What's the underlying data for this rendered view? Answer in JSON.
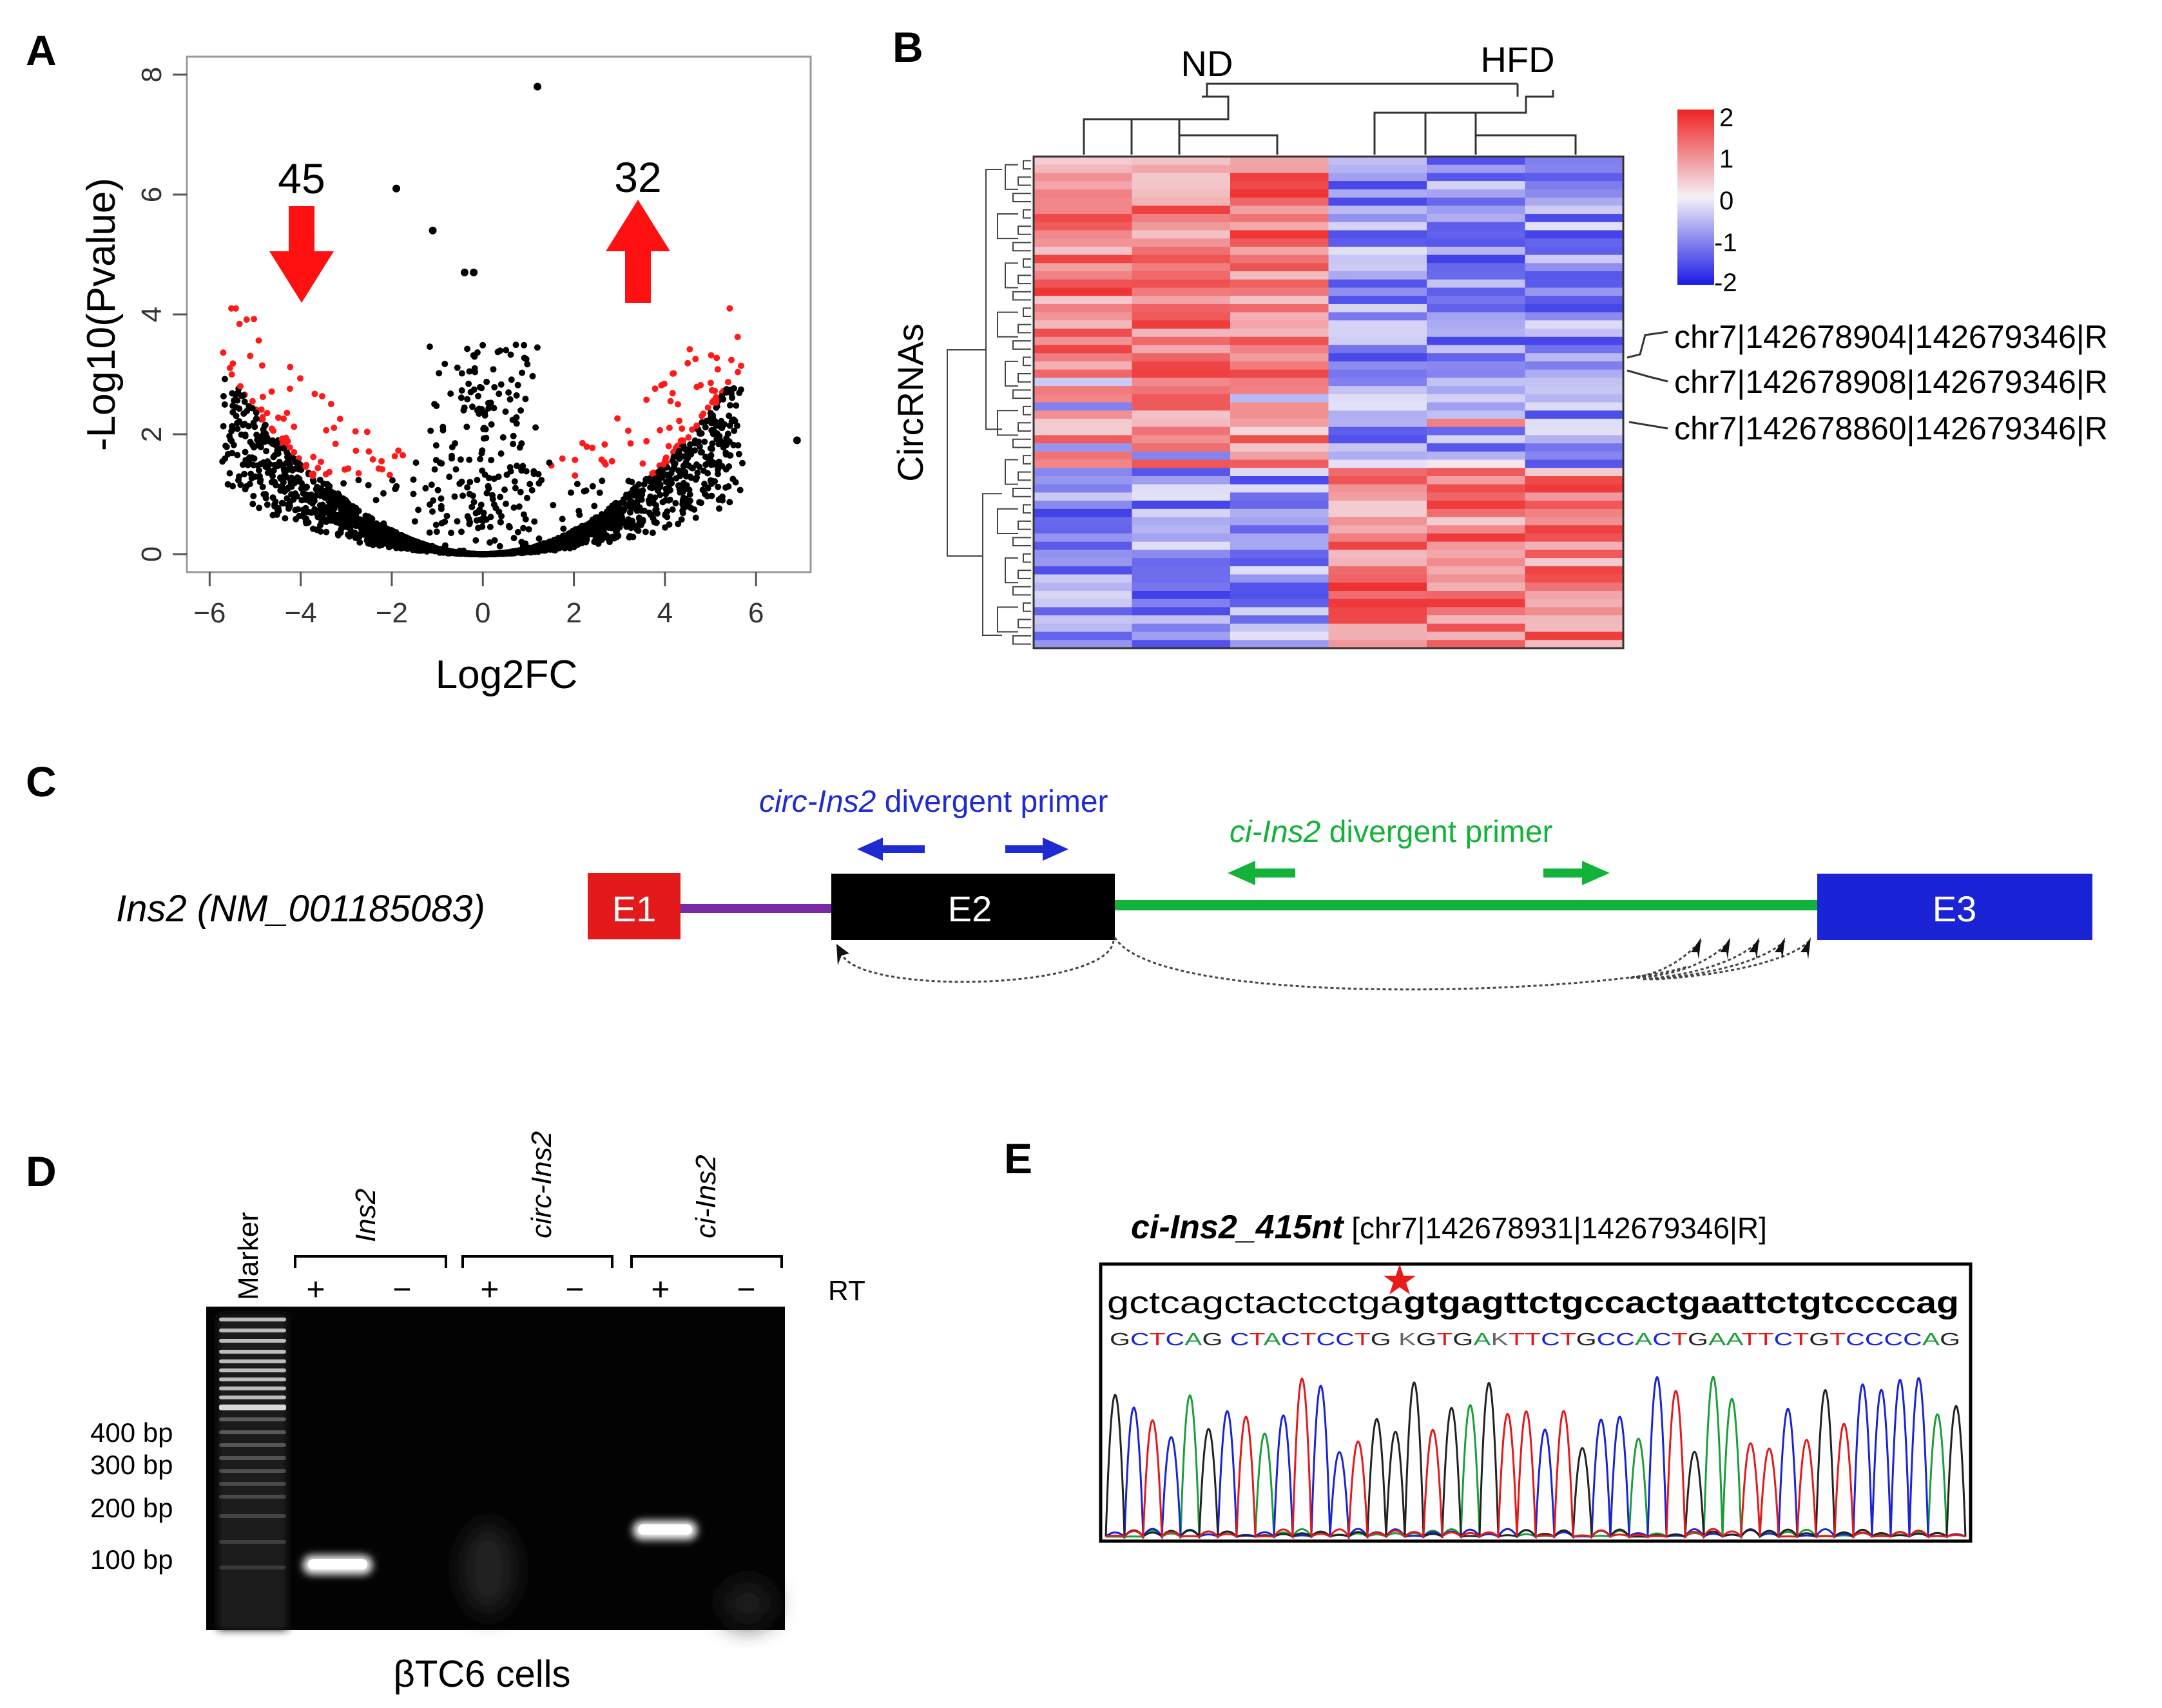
{
  "panels": {
    "A": {
      "letter": "A",
      "chart_data": {
        "type": "scatter",
        "xlabel": "Log2FC",
        "ylabel": "-Log10(Pvalue)",
        "xlim": [
          -6.5,
          7.2
        ],
        "ylim": [
          -0.3,
          8.3
        ],
        "xticks": [
          -6,
          -4,
          -2,
          0,
          2,
          4,
          6
        ],
        "xtick_labels": [
          "−6",
          "−4",
          "−2",
          "0",
          "2",
          "4",
          "6"
        ],
        "yticks": [
          0,
          2,
          4,
          6,
          8
        ],
        "ytick_labels": [
          "0",
          "2",
          "4",
          "6",
          "8"
        ],
        "down_count": "45",
        "up_count": "32",
        "colors": {
          "points": "#000000",
          "significant": "#ff1a1a",
          "arrows": "#ff1111"
        },
        "outliers": [
          {
            "x": 1.2,
            "y": 7.8
          },
          {
            "x": -1.9,
            "y": 6.1
          },
          {
            "x": -1.1,
            "y": 5.4
          },
          {
            "x": -0.4,
            "y": 4.7
          },
          {
            "x": -0.2,
            "y": 4.7
          },
          {
            "x": 6.9,
            "y": 1.9
          }
        ]
      }
    },
    "B": {
      "letter": "B",
      "group_labels": [
        "ND",
        "HFD"
      ],
      "ylabel": "CircRNAs",
      "legend_ticks": [
        "2",
        "1",
        "0",
        "-1",
        "-2"
      ],
      "annotations": [
        "chr7|142678904|142679346|R",
        "chr7|142678908|142679346|R",
        "chr7|142678860|142679346|R"
      ],
      "colors": {
        "high": "#ee2222",
        "mid": "#f4f2f8",
        "low": "#1a1ae6"
      }
    },
    "C": {
      "letter": "C",
      "gene_label": "Ins2 (NM_001185083)",
      "exons": [
        "E1",
        "E2",
        "E3"
      ],
      "circ_primer_italic": "circ-Ins2",
      "circ_primer_rest": " divergent  primer",
      "ci_primer_italic": "ci-Ins2",
      "ci_primer_rest": " divergent  primer",
      "colors": {
        "E1": "#e31a1c",
        "E2": "#000000",
        "E3": "#1a23d6",
        "intron1": "#7b2aa6",
        "intron2": "#13b23a",
        "circ_primer": "#1f2bd1",
        "ci_primer": "#13b23a"
      }
    },
    "D": {
      "letter": "D",
      "marker_label": "Marker",
      "lane_groups": [
        "Ins2",
        "circ-Ins2",
        "ci-Ins2"
      ],
      "signs": [
        "+",
        "−",
        "+",
        "−",
        "+",
        "−"
      ],
      "rt_label": "RT",
      "size_labels": [
        "400 bp",
        "300 bp",
        "200 bp",
        "100 bp"
      ],
      "caption": "βTC6 cells"
    },
    "E": {
      "letter": "E",
      "title_bold": "ci-Ins2_415nt",
      "title_rest": " [chr7|142678931|142679346|R]",
      "seq_plain": "gctcagctactcctga",
      "seq_bold": "gtgagttctgccactgaattctgtccccag",
      "basecalls": "GCTCAG CTACTCCTG KGTGAKTTCTGCCACTGAATTCTGTCCCCAG",
      "colors": {
        "A": "#1a9e3a",
        "C": "#1a23d6",
        "G": "#222222",
        "T": "#e31a1c"
      }
    }
  }
}
